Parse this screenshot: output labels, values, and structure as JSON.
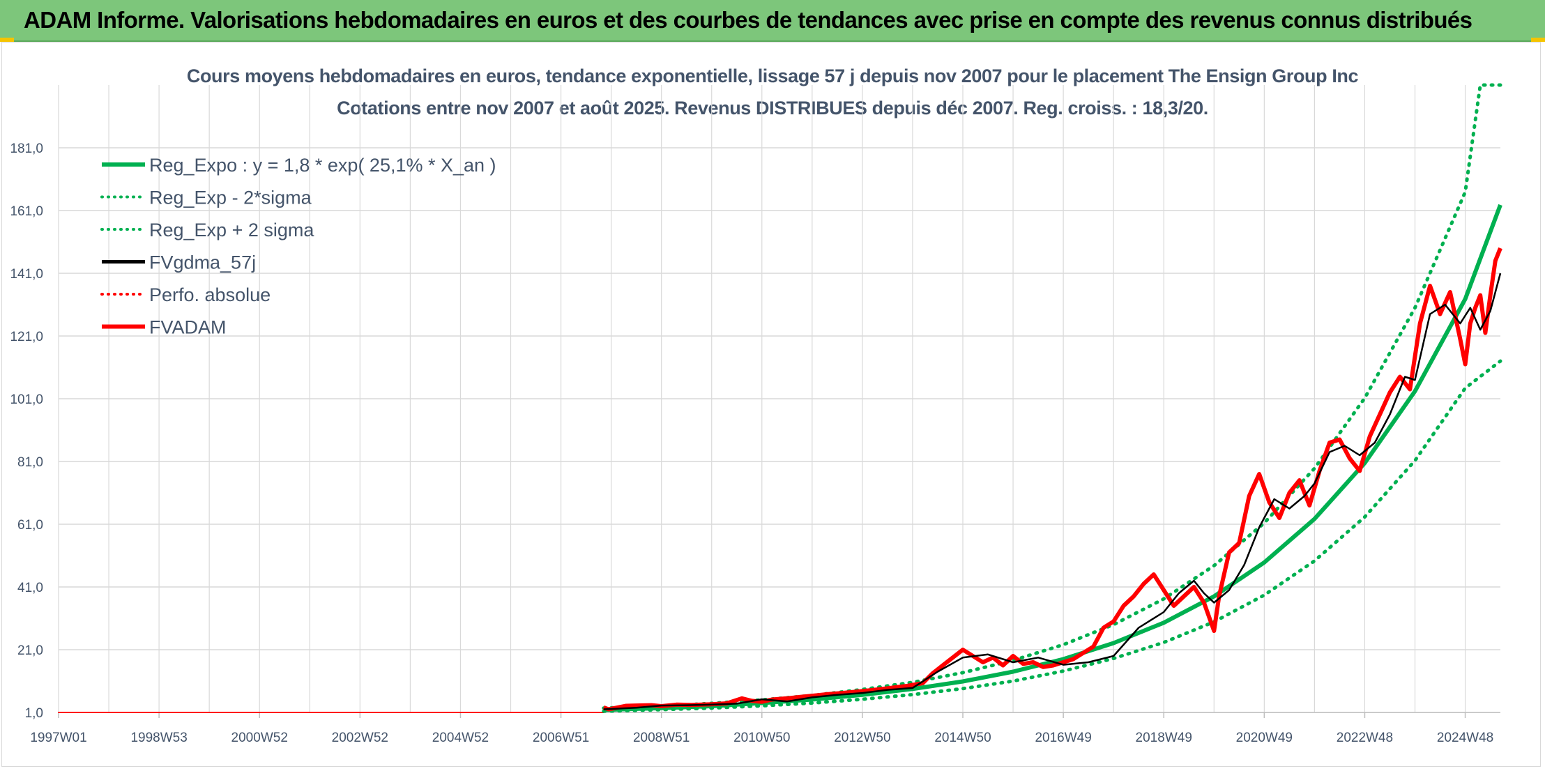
{
  "header": {
    "title": "ADAM Informe. Valorisations hebdomadaires en euros et des courbes de tendances avec prise en compte des revenus connus distribués"
  },
  "colors": {
    "banner": "#7dc67b",
    "trend": "#00b050",
    "smooth": "#000000",
    "price": "#ff0000",
    "axis_text": "#44546a",
    "grid": "#d9d9d9"
  },
  "chart_data": {
    "type": "line",
    "title": "Cours moyens hebdomadaires en euros, tendance exponentielle, lissage 57 j depuis nov 2007 pour le placement The Ensign Group Inc",
    "subtitle": "Cotations entre nov 2007 et août 2025. Revenus DISTRIBUES depuis déc 2007. Reg. croiss. : 18,3/20.",
    "xlabel": "",
    "ylabel": "",
    "xlim": [
      1997.0,
      2025.7
    ],
    "ylim": [
      1.0,
      201.0
    ],
    "y_ticks": [
      "1,0",
      "21,0",
      "41,0",
      "61,0",
      "81,0",
      "101,0",
      "121,0",
      "141,0",
      "161,0",
      "181,0"
    ],
    "y_tick_values": [
      1,
      21,
      41,
      61,
      81,
      101,
      121,
      141,
      161,
      181
    ],
    "x_ticks": [
      "1997W01",
      "1998W53",
      "2000W52",
      "2002W52",
      "2004W52",
      "2006W51",
      "2008W51",
      "2010W50",
      "2012W50",
      "2014W50",
      "2016W49",
      "2018W49",
      "2020W49",
      "2022W48",
      "2024W48"
    ],
    "x_tick_values": [
      1997,
      1999,
      2001,
      2003,
      2005,
      2007,
      2009,
      2011,
      2013,
      2015,
      2017,
      2019,
      2021,
      2023,
      2025
    ],
    "grid": true,
    "legend_position": "top-left",
    "series": [
      {
        "name": "Reg_Expo : y = 1,8 * exp( 25,1% *  X_an )",
        "style": "solid",
        "color": "#00b050",
        "x": [
          2007.85,
          2009,
          2010,
          2011,
          2012,
          2013,
          2014,
          2015,
          2016,
          2017,
          2018,
          2019,
          2020,
          2021,
          2022,
          2023,
          2024,
          2025,
          2025.7
        ],
        "y": [
          1.8,
          2.4,
          3.0,
          4.0,
          5.1,
          6.6,
          8.5,
          10.9,
          14.0,
          18.0,
          23.1,
          29.6,
          38.0,
          48.8,
          62.7,
          80.5,
          103.4,
          132.8,
          162.8
        ]
      },
      {
        "name": "Reg_Exp - 2*sigma",
        "style": "dotted",
        "color": "#00b050",
        "x": [
          2007.85,
          2009,
          2010,
          2011,
          2012,
          2013,
          2014,
          2015,
          2016,
          2017,
          2018,
          2019,
          2020,
          2021,
          2022,
          2023,
          2024,
          2025,
          2025.7
        ],
        "y": [
          1.4,
          1.9,
          2.4,
          3.1,
          4.0,
          5.2,
          6.7,
          8.6,
          11.0,
          14.2,
          18.2,
          23.3,
          29.9,
          38.4,
          49.3,
          63.3,
          81.3,
          104.4,
          113.0
        ]
      },
      {
        "name": "Reg_Exp + 2 sigma",
        "style": "dotted",
        "color": "#00b050",
        "x": [
          2007.85,
          2009,
          2010,
          2011,
          2012,
          2013,
          2014,
          2015,
          2016,
          2017,
          2018,
          2019,
          2020,
          2021,
          2022,
          2023,
          2024,
          2025,
          2025.3,
          2025.7
        ],
        "y": [
          2.4,
          3.0,
          3.9,
          5.0,
          6.4,
          8.3,
          10.6,
          13.7,
          17.6,
          22.6,
          29.0,
          37.2,
          47.8,
          61.4,
          78.8,
          101.2,
          130.0,
          166.9,
          201.0,
          201.0
        ]
      },
      {
        "name": "FVgdma_57j",
        "style": "solid",
        "color": "#000000",
        "x": [
          2007.85,
          2008.5,
          2009,
          2009.5,
          2010,
          2010.5,
          2011,
          2011.5,
          2012,
          2012.5,
          2013,
          2013.5,
          2014,
          2014.5,
          2015,
          2015.5,
          2016,
          2016.5,
          2017,
          2017.5,
          2018,
          2018.5,
          2019,
          2019.3,
          2019.6,
          2019.8,
          2020,
          2020.3,
          2020.6,
          2020.9,
          2021.2,
          2021.5,
          2021.8,
          2022,
          2022.3,
          2022.6,
          2022.9,
          2023.2,
          2023.5,
          2023.8,
          2024,
          2024.3,
          2024.6,
          2024.9,
          2025.1,
          2025.3,
          2025.5,
          2025.7
        ],
        "y": [
          2.0,
          2.5,
          3.2,
          3.3,
          3.5,
          3.8,
          5.2,
          4.5,
          5.8,
          6.6,
          7.2,
          8.2,
          8.8,
          14.0,
          18.5,
          19.5,
          17.0,
          18.5,
          16.2,
          17.0,
          19.0,
          28.0,
          33.0,
          39.0,
          43.0,
          39.0,
          36.0,
          40.0,
          48.0,
          60.0,
          69.0,
          66.0,
          70.0,
          74.0,
          84.0,
          86.0,
          83.0,
          87.0,
          96.0,
          108.0,
          107.0,
          128.0,
          131.0,
          125.0,
          130.0,
          123.0,
          129.0,
          141.0
        ]
      },
      {
        "name": "Perfo. absolue",
        "style": "dotted",
        "color": "#ff0000",
        "x": [
          1997.0,
          2007.85
        ],
        "y": [
          1.0,
          1.0
        ]
      },
      {
        "name": "FVADAM",
        "style": "solid",
        "color": "#ff0000",
        "x": [
          2007.85,
          2007.95,
          2008.1,
          2008.3,
          2008.5,
          2008.8,
          2009,
          2009.3,
          2009.6,
          2010,
          2010.3,
          2010.6,
          2010.8,
          2011,
          2011.2,
          2011.5,
          2011.8,
          2012,
          2012.3,
          2012.6,
          2013,
          2013.3,
          2013.6,
          2013.9,
          2014.2,
          2014.4,
          2014.6,
          2014.8,
          2015.0,
          2015.2,
          2015.4,
          2015.6,
          2015.8,
          2016.0,
          2016.2,
          2016.4,
          2016.6,
          2016.8,
          2017.0,
          2017.2,
          2017.4,
          2017.6,
          2017.8,
          2018.0,
          2018.2,
          2018.4,
          2018.6,
          2018.8,
          2019.0,
          2019.2,
          2019.4,
          2019.6,
          2019.8,
          2020.0,
          2020.1,
          2020.2,
          2020.3,
          2020.5,
          2020.7,
          2020.9,
          2021.1,
          2021.3,
          2021.5,
          2021.7,
          2021.9,
          2022.1,
          2022.3,
          2022.5,
          2022.7,
          2022.9,
          2023.1,
          2023.3,
          2023.5,
          2023.7,
          2023.9,
          2024.1,
          2024.3,
          2024.5,
          2024.7,
          2024.9,
          2025.0,
          2025.1,
          2025.2,
          2025.3,
          2025.4,
          2025.5,
          2025.6,
          2025.7
        ],
        "y": [
          2.6,
          2.0,
          2.5,
          3.1,
          3.2,
          3.3,
          3.0,
          3.5,
          3.4,
          3.6,
          3.9,
          5.5,
          4.7,
          4.4,
          5.1,
          5.5,
          6.0,
          6.3,
          6.8,
          7.2,
          7.8,
          8.3,
          8.9,
          9.5,
          10.3,
          13.5,
          16.0,
          18.5,
          21.0,
          19.0,
          17.0,
          18.5,
          16.0,
          19.0,
          16.5,
          17.0,
          15.5,
          16.0,
          17.0,
          18.0,
          20.0,
          22.0,
          28.0,
          30.0,
          35.0,
          38.0,
          42.0,
          45.0,
          40.0,
          35.0,
          38.0,
          41.0,
          36.0,
          27.0,
          38.0,
          45.0,
          52.0,
          55.0,
          70.0,
          77.0,
          68.0,
          63.0,
          71.0,
          75.0,
          67.0,
          78.0,
          87.0,
          88.0,
          82.0,
          78.0,
          89.0,
          96.0,
          103.0,
          108.0,
          104.0,
          125.0,
          137.0,
          128.0,
          135.0,
          120.0,
          112.0,
          125.0,
          130.0,
          134.0,
          122.0,
          134.0,
          145.0,
          149.0
        ]
      }
    ]
  }
}
